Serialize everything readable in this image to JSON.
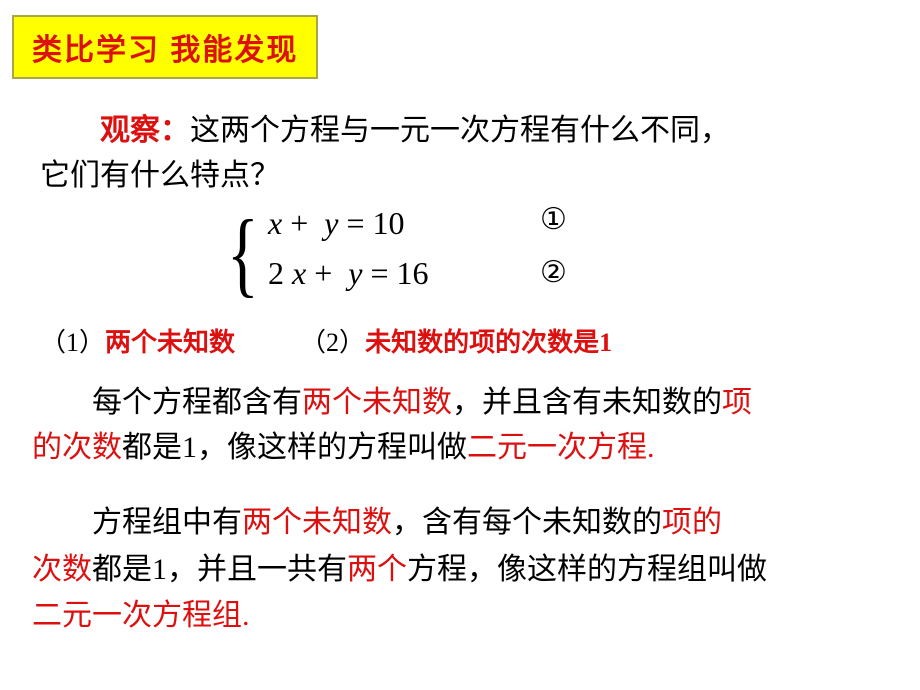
{
  "colors": {
    "header_bg": "#ffff00",
    "header_border": "#a7a74a",
    "red_text": "#dd1010",
    "black_text": "#000000",
    "background": "#ffffff"
  },
  "fonts": {
    "heading_family": "SimHei",
    "body_family": "SimSun",
    "math_family": "Times New Roman",
    "heading_size": 30,
    "body_size": 30,
    "points_size": 26,
    "math_size": 32
  },
  "header": {
    "title": "类比学习  我能发现"
  },
  "obs": {
    "label": "观察：",
    "text1": "这两个方程与一元一次方程有什么不同，",
    "text2": "它们有什么特点？"
  },
  "equations": {
    "eq1_lhs_a": "x",
    "eq1_op": " + ",
    "eq1_lhs_b": "y",
    "eq1_eq": " = ",
    "eq1_rhs": "10",
    "eq1_mark": "①",
    "eq2_coef": "2",
    "eq2_lhs_a": "x",
    "eq2_op": " + ",
    "eq2_lhs_b": "y",
    "eq2_eq": " = ",
    "eq2_rhs": "16",
    "eq2_mark": "②",
    "brace": "{"
  },
  "points": {
    "p1_label": "（1）",
    "p1_text": "两个未知数",
    "gap": "　　　",
    "p2_label": "（2）",
    "p2_text": "未知数的项的次数是1"
  },
  "def1": {
    "t1": "　　每个方程都含有",
    "r1": "两个未知数",
    "t2": "，并且含有未知数的",
    "r2": "项",
    "r3": "的次数",
    "t3": "都是1，像这样的方程叫做",
    "r4": "二元一次方程."
  },
  "def2": {
    "t1": "　　方程组中有",
    "r1": "两个未知数",
    "t2": "，含有每个未知数的",
    "r2": "项的",
    "r3": "次数",
    "t3": "都是1，并且一共有",
    "r4": "两个",
    "t4": "方程，像这样的方程组叫做",
    "r5": "二元一次方程组."
  }
}
